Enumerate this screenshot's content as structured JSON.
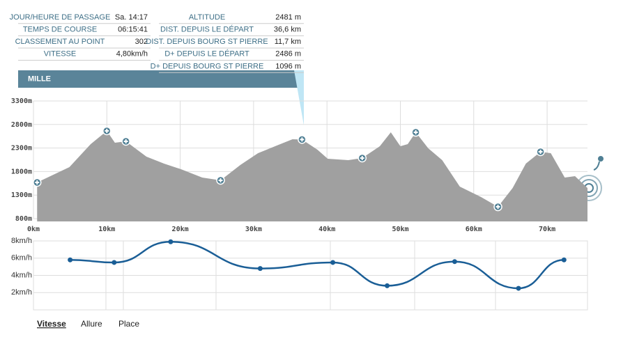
{
  "info": {
    "left": [
      [
        "JOUR/HEURE DE PASSAGE",
        "Sa. 14:17"
      ],
      [
        "TEMPS DE COURSE",
        "06:15:41"
      ],
      [
        "CLASSEMENT AU POINT",
        "302"
      ],
      [
        "VITESSE",
        "4,80km/h"
      ]
    ],
    "right": [
      [
        "ALTITUDE",
        "2481 m"
      ],
      [
        "DIST. DEPUIS LE DÉPART",
        "36,6 km"
      ],
      [
        "DIST. DEPUIS BOURG ST PIERRE",
        "11,7 km"
      ],
      [
        "D+ DEPUIS LE DÉPART",
        "2486 m"
      ],
      [
        "D+ DEPUIS BOURG ST PIERRE",
        "1096 m"
      ]
    ]
  },
  "banner": "MILLE",
  "chart_data": [
    {
      "type": "area",
      "color": "#a0a0a0",
      "grid": true,
      "x": [
        0.5,
        4.9,
        7.8,
        10,
        11.1,
        12.6,
        15.4,
        17.8,
        20.1,
        23,
        25.5,
        28.2,
        30.6,
        33.4,
        35.3,
        36.6,
        38.7,
        40.1,
        42.9,
        44.8,
        47.2,
        48.7,
        50,
        51,
        52.1,
        53.8,
        55.7,
        58.1,
        61,
        63.3,
        65.3,
        67.1,
        69.1,
        70.5,
        72.4,
        73.8,
        75.5
      ],
      "values": [
        1569,
        1895,
        2383,
        2664,
        2412,
        2442,
        2117,
        1969,
        1850,
        1673,
        1614,
        1940,
        2190,
        2368,
        2486,
        2481,
        2264,
        2072,
        2043,
        2087,
        2338,
        2634,
        2338,
        2383,
        2634,
        2294,
        2043,
        1480,
        1259,
        1051,
        1450,
        1969,
        2220,
        2190,
        1673,
        1702,
        1450
      ],
      "checkpoints": {
        "x": [
          0.5,
          10,
          12.6,
          25.5,
          36.6,
          44.8,
          52.1,
          63.3,
          69.1
        ],
        "values": [
          1569,
          2664,
          2442,
          1614,
          2481,
          2087,
          2634,
          1051,
          2220
        ],
        "color": "#4f7f94"
      },
      "xlim": [
        0,
        75.5
      ],
      "ylim": [
        800,
        3300
      ],
      "xticks": [
        {
          "value": 0,
          "label": "0km"
        },
        {
          "value": 10,
          "label": "10km"
        },
        {
          "value": 20,
          "label": "20km"
        },
        {
          "value": 30,
          "label": "30km"
        },
        {
          "value": 40,
          "label": "40km"
        },
        {
          "value": 50,
          "label": "50km"
        },
        {
          "value": 60,
          "label": "60km"
        },
        {
          "value": 70,
          "label": "70km"
        }
      ],
      "yticks": [
        {
          "value": 800,
          "label": "800m"
        },
        {
          "value": 1300,
          "label": "1300m"
        },
        {
          "value": 1800,
          "label": "1800m"
        },
        {
          "value": 2300,
          "label": "2300m"
        },
        {
          "value": 2800,
          "label": "2800m"
        },
        {
          "value": 3300,
          "label": "3300m"
        }
      ]
    },
    {
      "type": "line",
      "color": "#1a5e96",
      "grid": true,
      "x": [
        5.0,
        11.0,
        18.7,
        30.9,
        40.8,
        48.2,
        57.4,
        66.1,
        72.3
      ],
      "values": [
        5.8,
        5.5,
        7.9,
        4.8,
        5.5,
        2.8,
        5.6,
        2.5,
        5.8
      ],
      "xlim": [
        0,
        75.5
      ],
      "ylim": [
        0,
        8
      ],
      "yticks": [
        {
          "value": 2,
          "label": "2km/h"
        },
        {
          "value": 4,
          "label": "4km/h"
        },
        {
          "value": 6,
          "label": "6km/h"
        },
        {
          "value": 8,
          "label": "8km/h"
        }
      ]
    }
  ],
  "tabs": [
    "Vitesse",
    "Allure",
    "Place"
  ]
}
